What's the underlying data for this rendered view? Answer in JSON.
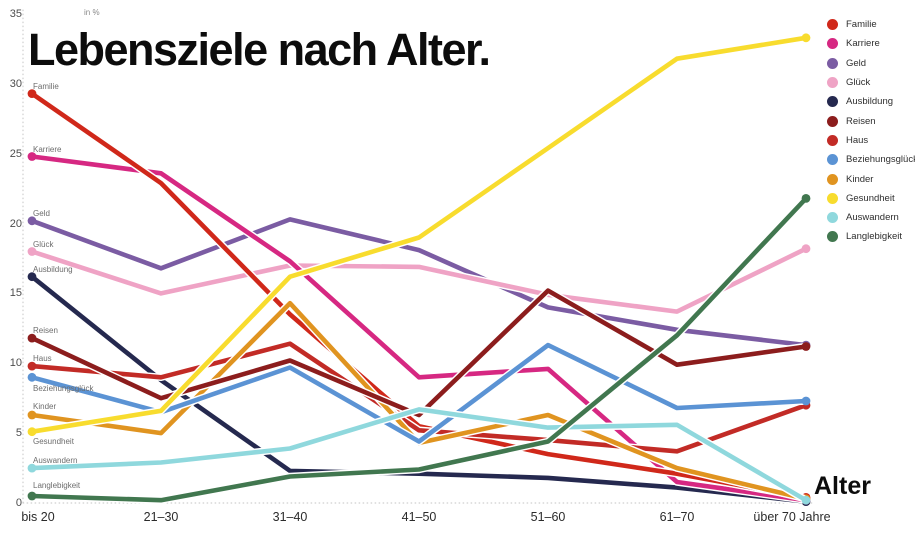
{
  "title": "Lebensziele nach Alter.",
  "y_axis": {
    "unit_label": "in %",
    "ticks": [
      0,
      5,
      10,
      15,
      20,
      25,
      30,
      35
    ],
    "range": [
      0,
      35
    ]
  },
  "x_axis": {
    "title": "Alter"
  },
  "chart_data": {
    "type": "line",
    "title": "Lebensziele nach Alter.",
    "xlabel": "Alter",
    "ylabel": "in %",
    "ylim": [
      0,
      35
    ],
    "grid": false,
    "legend_position": "top-right",
    "categories": [
      "bis 20",
      "21–30",
      "31–40",
      "41–50",
      "51–60",
      "61–70",
      "über 70 Jahre"
    ],
    "series": [
      {
        "name": "Familie",
        "color": "#d0281a",
        "values": [
          29.3,
          22.9,
          13.5,
          5.5,
          3.5,
          2.1,
          0.4
        ],
        "label_offset": -12
      },
      {
        "name": "Karriere",
        "color": "#d62882",
        "values": [
          24.8,
          23.6,
          17.3,
          9.0,
          9.6,
          1.5,
          0.2
        ],
        "label_offset": -12
      },
      {
        "name": "Geld",
        "color": "#7b5ca3",
        "values": [
          20.2,
          16.8,
          20.3,
          18.1,
          14.0,
          12.4,
          11.3
        ],
        "label_offset": -12
      },
      {
        "name": "Glück",
        "color": "#efa3c5",
        "values": [
          18.0,
          15.0,
          17.0,
          16.9,
          14.9,
          13.7,
          18.2
        ],
        "label_offset": -12
      },
      {
        "name": "Ausbildung",
        "color": "#25294f",
        "values": [
          16.2,
          8.8,
          2.3,
          2.1,
          1.8,
          1.1,
          0.1
        ],
        "label_offset": -12
      },
      {
        "name": "Reisen",
        "color": "#8c1d1d",
        "values": [
          11.8,
          7.5,
          10.2,
          6.3,
          15.2,
          9.9,
          11.2
        ],
        "label_offset": -12
      },
      {
        "name": "Haus",
        "color": "#c22b26",
        "values": [
          9.8,
          9.0,
          11.4,
          5.2,
          4.5,
          3.7,
          7.0
        ],
        "label_offset": -12
      },
      {
        "name": "Beziehungsglück",
        "color": "#5b93d4",
        "values": [
          9.0,
          6.5,
          9.7,
          4.4,
          11.3,
          6.8,
          7.3
        ],
        "label_offset": 7
      },
      {
        "name": "Kinder",
        "color": "#e09420",
        "values": [
          6.3,
          5.0,
          14.3,
          4.3,
          6.3,
          2.5,
          0.3
        ],
        "label_offset": -13
      },
      {
        "name": "Gesundheit",
        "color": "#f8dc2e",
        "values": [
          5.1,
          6.6,
          16.2,
          19.0,
          25.4,
          31.8,
          33.3
        ],
        "label_offset": 5
      },
      {
        "name": "Auswandern",
        "color": "#8fd8dd",
        "values": [
          2.5,
          2.9,
          3.9,
          6.7,
          5.4,
          5.6,
          0.2
        ],
        "label_offset": -12
      },
      {
        "name": "Langlebigkeit",
        "color": "#41774f",
        "values": [
          0.5,
          0.2,
          1.9,
          2.4,
          4.4,
          12.0,
          21.8
        ],
        "label_offset": -15
      }
    ],
    "draw_order": [
      "Geld",
      "Glück",
      "Ausbildung",
      "Karriere",
      "Familie",
      "Haus",
      "Kinder",
      "Beziehungsglück",
      "Reisen",
      "Auswandern",
      "Gesundheit",
      "Langlebigkeit"
    ]
  }
}
